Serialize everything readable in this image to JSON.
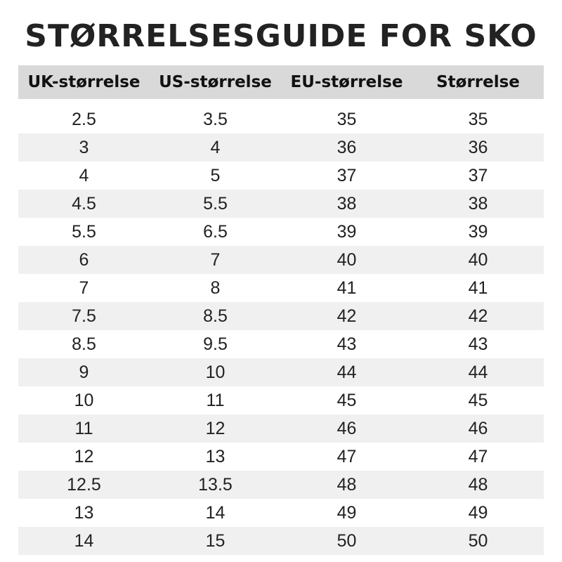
{
  "title": "STØRRELSESGUIDE FOR SKO",
  "headers": [
    "UK-størrelse",
    "US-størrelse",
    "EU-størrelse",
    "Størrelse"
  ],
  "rows": [
    [
      "2.5",
      "3.5",
      "35",
      "35"
    ],
    [
      "3",
      "4",
      "36",
      "36"
    ],
    [
      "4",
      "5",
      "37",
      "37"
    ],
    [
      "4.5",
      "5.5",
      "38",
      "38"
    ],
    [
      "5.5",
      "6.5",
      "39",
      "39"
    ],
    [
      "6",
      "7",
      "40",
      "40"
    ],
    [
      "7",
      "8",
      "41",
      "41"
    ],
    [
      "7.5",
      "8.5",
      "42",
      "42"
    ],
    [
      "8.5",
      "9.5",
      "43",
      "43"
    ],
    [
      "9",
      "10",
      "44",
      "44"
    ],
    [
      "10",
      "11",
      "45",
      "45"
    ],
    [
      "11",
      "12",
      "46",
      "46"
    ],
    [
      "12",
      "13",
      "47",
      "47"
    ],
    [
      "12.5",
      "13.5",
      "48",
      "48"
    ],
    [
      "13",
      "14",
      "49",
      "49"
    ],
    [
      "14",
      "15",
      "50",
      "50"
    ]
  ],
  "colors": {
    "header_bg": "#d9d9d9",
    "stripe_bg": "#f0f0f0",
    "text": "#1a1a1a"
  }
}
